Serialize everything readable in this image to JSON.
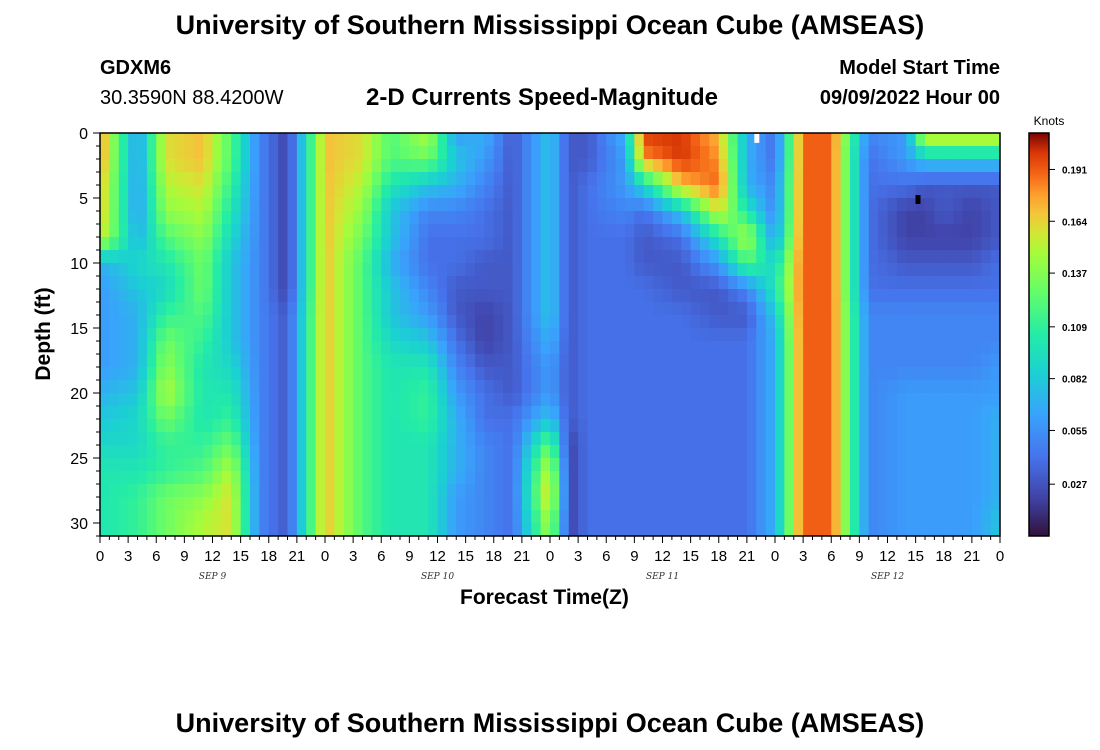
{
  "page": {
    "title_top": "University of Southern Mississippi Ocean Cube (AMSEAS)",
    "title_bottom": "University of Southern Mississippi Ocean Cube (AMSEAS)",
    "station_id": "GDXM6",
    "station_coords": "30.3590N  88.4200W",
    "model_start_label": "Model Start Time",
    "model_start_value": "09/09/2022 Hour 00"
  },
  "chart_data": {
    "type": "heatmap",
    "title": "2-D Currents Speed-Magnitude",
    "xlabel": "Forecast Time(Z)",
    "ylabel": "Depth (ft)",
    "x_range_hours": [
      0,
      96
    ],
    "y_range_ft": [
      0,
      31
    ],
    "x_ticks": [
      {
        "hour": 0,
        "label": "0"
      },
      {
        "hour": 3,
        "label": "3"
      },
      {
        "hour": 6,
        "label": "6"
      },
      {
        "hour": 9,
        "label": "9"
      },
      {
        "hour": 12,
        "label": "12"
      },
      {
        "hour": 15,
        "label": "15"
      },
      {
        "hour": 18,
        "label": "18"
      },
      {
        "hour": 21,
        "label": "21"
      },
      {
        "hour": 24,
        "label": "0"
      },
      {
        "hour": 27,
        "label": "3"
      },
      {
        "hour": 30,
        "label": "6"
      },
      {
        "hour": 33,
        "label": "9"
      },
      {
        "hour": 36,
        "label": "12"
      },
      {
        "hour": 39,
        "label": "15"
      },
      {
        "hour": 42,
        "label": "18"
      },
      {
        "hour": 45,
        "label": "21"
      },
      {
        "hour": 48,
        "label": "0"
      },
      {
        "hour": 51,
        "label": "3"
      },
      {
        "hour": 54,
        "label": "6"
      },
      {
        "hour": 57,
        "label": "9"
      },
      {
        "hour": 60,
        "label": "12"
      },
      {
        "hour": 63,
        "label": "15"
      },
      {
        "hour": 66,
        "label": "18"
      },
      {
        "hour": 69,
        "label": "21"
      },
      {
        "hour": 72,
        "label": "0"
      },
      {
        "hour": 75,
        "label": "3"
      },
      {
        "hour": 78,
        "label": "6"
      },
      {
        "hour": 81,
        "label": "9"
      },
      {
        "hour": 84,
        "label": "12"
      },
      {
        "hour": 87,
        "label": "15"
      },
      {
        "hour": 90,
        "label": "18"
      },
      {
        "hour": 93,
        "label": "21"
      },
      {
        "hour": 96,
        "label": "0"
      }
    ],
    "day_labels": [
      {
        "hour": 12,
        "label": "SEP 9"
      },
      {
        "hour": 36,
        "label": "SEP 10"
      },
      {
        "hour": 60,
        "label": "SEP 11"
      },
      {
        "hour": 84,
        "label": "SEP 12"
      }
    ],
    "y_ticks": [
      {
        "depth": 0,
        "label": "0"
      },
      {
        "depth": 5,
        "label": "5"
      },
      {
        "depth": 10,
        "label": "10"
      },
      {
        "depth": 15,
        "label": "15"
      },
      {
        "depth": 20,
        "label": "20"
      },
      {
        "depth": 25,
        "label": "25"
      },
      {
        "depth": 30,
        "label": "30"
      }
    ],
    "colorbar": {
      "title": "Knots",
      "range": [
        0.0,
        0.21
      ],
      "ticks": [
        {
          "value": 0.191,
          "label": "0.191"
        },
        {
          "value": 0.164,
          "label": "0.164"
        },
        {
          "value": 0.137,
          "label": "0.137"
        },
        {
          "value": 0.109,
          "label": "0.109"
        },
        {
          "value": 0.082,
          "label": "0.082"
        },
        {
          "value": 0.055,
          "label": "0.055"
        },
        {
          "value": 0.027,
          "label": "0.027"
        }
      ]
    },
    "grid": {
      "hours": [
        0,
        4,
        7,
        11,
        14,
        17,
        20,
        24,
        28,
        31,
        35,
        38,
        41,
        44,
        48,
        50,
        52,
        56,
        58,
        62,
        66,
        69,
        72,
        75,
        78,
        82,
        86,
        88,
        90,
        93,
        96
      ],
      "depths_ft": [
        0,
        2,
        4,
        6,
        8,
        10,
        12,
        14,
        16,
        18,
        20,
        22,
        24,
        26,
        28,
        30,
        31
      ],
      "values": [
        [
          0.18,
          0.06,
          0.16,
          0.17,
          0.12,
          0.05,
          0.02,
          0.17,
          0.16,
          0.12,
          0.15,
          0.06,
          0.07,
          0.03,
          0.08,
          0.03,
          0.03,
          0.07,
          0.2,
          0.2,
          0.17,
          0.07,
          0.04,
          0.19,
          0.19,
          0.05,
          0.06,
          0.17,
          0.17,
          0.17,
          0.17
        ],
        [
          0.18,
          0.06,
          0.16,
          0.17,
          0.12,
          0.05,
          0.02,
          0.17,
          0.16,
          0.12,
          0.13,
          0.08,
          0.06,
          0.03,
          0.08,
          0.03,
          0.03,
          0.06,
          0.18,
          0.2,
          0.18,
          0.07,
          0.04,
          0.19,
          0.19,
          0.04,
          0.06,
          0.08,
          0.08,
          0.08,
          0.08
        ],
        [
          0.17,
          0.06,
          0.15,
          0.16,
          0.11,
          0.05,
          0.02,
          0.17,
          0.15,
          0.1,
          0.08,
          0.07,
          0.05,
          0.03,
          0.08,
          0.03,
          0.04,
          0.06,
          0.09,
          0.17,
          0.19,
          0.07,
          0.05,
          0.19,
          0.19,
          0.04,
          0.04,
          0.03,
          0.03,
          0.03,
          0.03
        ],
        [
          0.17,
          0.06,
          0.14,
          0.15,
          0.1,
          0.05,
          0.02,
          0.17,
          0.14,
          0.08,
          0.05,
          0.05,
          0.04,
          0.03,
          0.08,
          0.03,
          0.04,
          0.05,
          0.04,
          0.08,
          0.16,
          0.1,
          0.05,
          0.19,
          0.19,
          0.04,
          0.02,
          0.02,
          0.03,
          0.02,
          0.03
        ],
        [
          0.16,
          0.07,
          0.12,
          0.14,
          0.09,
          0.05,
          0.02,
          0.17,
          0.13,
          0.08,
          0.04,
          0.04,
          0.04,
          0.03,
          0.08,
          0.03,
          0.04,
          0.04,
          0.03,
          0.04,
          0.1,
          0.15,
          0.06,
          0.19,
          0.19,
          0.04,
          0.02,
          0.02,
          0.02,
          0.02,
          0.03
        ],
        [
          0.07,
          0.09,
          0.1,
          0.13,
          0.08,
          0.05,
          0.02,
          0.17,
          0.12,
          0.07,
          0.04,
          0.04,
          0.03,
          0.03,
          0.08,
          0.03,
          0.04,
          0.04,
          0.03,
          0.03,
          0.06,
          0.12,
          0.09,
          0.19,
          0.19,
          0.04,
          0.03,
          0.03,
          0.03,
          0.03,
          0.04
        ],
        [
          0.06,
          0.08,
          0.09,
          0.13,
          0.08,
          0.05,
          0.02,
          0.17,
          0.12,
          0.08,
          0.05,
          0.03,
          0.03,
          0.03,
          0.08,
          0.03,
          0.04,
          0.04,
          0.04,
          0.03,
          0.03,
          0.05,
          0.1,
          0.19,
          0.19,
          0.04,
          0.04,
          0.04,
          0.04,
          0.04,
          0.04
        ],
        [
          0.06,
          0.07,
          0.11,
          0.12,
          0.08,
          0.05,
          0.03,
          0.17,
          0.12,
          0.08,
          0.06,
          0.03,
          0.02,
          0.03,
          0.08,
          0.03,
          0.04,
          0.04,
          0.04,
          0.04,
          0.03,
          0.03,
          0.08,
          0.19,
          0.19,
          0.05,
          0.05,
          0.05,
          0.05,
          0.05,
          0.05
        ],
        [
          0.06,
          0.07,
          0.13,
          0.11,
          0.08,
          0.05,
          0.03,
          0.17,
          0.12,
          0.09,
          0.08,
          0.04,
          0.02,
          0.03,
          0.07,
          0.03,
          0.04,
          0.04,
          0.04,
          0.04,
          0.04,
          0.04,
          0.07,
          0.19,
          0.19,
          0.05,
          0.05,
          0.05,
          0.05,
          0.05,
          0.05
        ],
        [
          0.06,
          0.07,
          0.14,
          0.1,
          0.09,
          0.05,
          0.03,
          0.17,
          0.12,
          0.1,
          0.1,
          0.05,
          0.03,
          0.03,
          0.06,
          0.03,
          0.04,
          0.04,
          0.04,
          0.04,
          0.04,
          0.04,
          0.07,
          0.19,
          0.19,
          0.05,
          0.05,
          0.05,
          0.05,
          0.05,
          0.06
        ],
        [
          0.07,
          0.08,
          0.15,
          0.1,
          0.1,
          0.05,
          0.03,
          0.17,
          0.12,
          0.1,
          0.11,
          0.06,
          0.04,
          0.03,
          0.06,
          0.03,
          0.04,
          0.04,
          0.04,
          0.04,
          0.04,
          0.04,
          0.07,
          0.19,
          0.19,
          0.05,
          0.06,
          0.06,
          0.06,
          0.06,
          0.06
        ],
        [
          0.08,
          0.09,
          0.13,
          0.1,
          0.11,
          0.05,
          0.03,
          0.17,
          0.12,
          0.1,
          0.11,
          0.07,
          0.04,
          0.04,
          0.08,
          0.03,
          0.04,
          0.04,
          0.04,
          0.04,
          0.04,
          0.04,
          0.07,
          0.19,
          0.19,
          0.05,
          0.06,
          0.06,
          0.06,
          0.06,
          0.07
        ],
        [
          0.09,
          0.09,
          0.11,
          0.11,
          0.13,
          0.05,
          0.03,
          0.17,
          0.12,
          0.1,
          0.1,
          0.07,
          0.05,
          0.04,
          0.13,
          0.02,
          0.04,
          0.04,
          0.04,
          0.04,
          0.04,
          0.04,
          0.07,
          0.19,
          0.19,
          0.05,
          0.06,
          0.06,
          0.06,
          0.06,
          0.07
        ],
        [
          0.1,
          0.1,
          0.11,
          0.12,
          0.15,
          0.05,
          0.03,
          0.17,
          0.12,
          0.1,
          0.1,
          0.07,
          0.05,
          0.04,
          0.16,
          0.02,
          0.04,
          0.04,
          0.04,
          0.04,
          0.04,
          0.04,
          0.07,
          0.19,
          0.19,
          0.05,
          0.06,
          0.06,
          0.06,
          0.06,
          0.07
        ],
        [
          0.1,
          0.11,
          0.13,
          0.14,
          0.16,
          0.05,
          0.03,
          0.17,
          0.12,
          0.1,
          0.1,
          0.06,
          0.05,
          0.04,
          0.17,
          0.02,
          0.04,
          0.04,
          0.04,
          0.04,
          0.04,
          0.04,
          0.07,
          0.19,
          0.19,
          0.05,
          0.06,
          0.06,
          0.06,
          0.06,
          0.07
        ],
        [
          0.1,
          0.11,
          0.13,
          0.15,
          0.16,
          0.05,
          0.03,
          0.17,
          0.12,
          0.1,
          0.1,
          0.06,
          0.05,
          0.04,
          0.15,
          0.02,
          0.04,
          0.04,
          0.04,
          0.04,
          0.04,
          0.04,
          0.07,
          0.19,
          0.19,
          0.05,
          0.06,
          0.06,
          0.06,
          0.06,
          0.08
        ],
        [
          0.1,
          0.11,
          0.13,
          0.15,
          0.16,
          0.05,
          0.03,
          0.17,
          0.12,
          0.1,
          0.1,
          0.06,
          0.05,
          0.04,
          0.15,
          0.02,
          0.04,
          0.04,
          0.04,
          0.04,
          0.04,
          0.04,
          0.07,
          0.19,
          0.19,
          0.05,
          0.06,
          0.06,
          0.06,
          0.06,
          0.08
        ]
      ]
    },
    "markers": [
      {
        "hour": 70,
        "depth_ft": 0.3,
        "color": "#ffffff"
      },
      {
        "hour": 87.2,
        "depth_ft": 5,
        "color": "#000000"
      }
    ]
  }
}
